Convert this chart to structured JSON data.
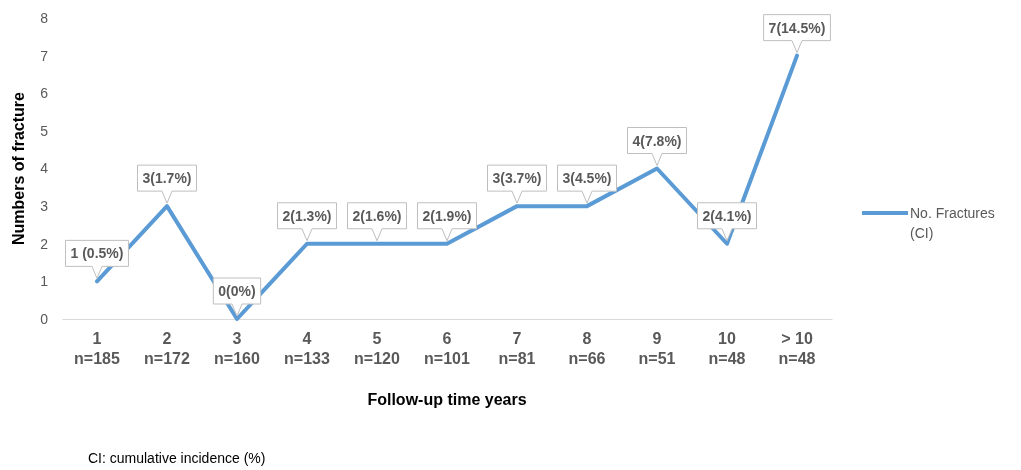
{
  "chart_data": {
    "type": "line",
    "categories": [
      "1\nn=185",
      "2\nn=172",
      "3\nn=160",
      "4\nn=133",
      "5\nn=120",
      "6\nn=101",
      "7\nn=81",
      "8\nn=66",
      "9\nn=51",
      "10\nn=48",
      "> 10\nn=48"
    ],
    "series": [
      {
        "name": "No. Fractures (CI)",
        "color": "#5b9bd5",
        "values": [
          1,
          3,
          0,
          2,
          2,
          2,
          3,
          3,
          4,
          2,
          7
        ],
        "value_labels": [
          "1 (0.5%)",
          "3(1.7%)",
          "0(0%)",
          "2(1.3%)",
          "2(1.6%)",
          "2(1.9%)",
          "3(3.7%)",
          "3(4.5%)",
          "4(7.8%)",
          "2(4.1%)",
          "7(14.5%)"
        ]
      }
    ],
    "xlabel": "Follow-up time years",
    "ylabel": "Numbers of fracture",
    "ylim": [
      0,
      8
    ],
    "yticks": [
      0,
      1,
      2,
      3,
      4,
      5,
      6,
      7,
      8
    ],
    "legend": "right",
    "marker": "none",
    "line_style": "solid",
    "annotations": [
      "CI: cumulative incidence (%)"
    ]
  }
}
